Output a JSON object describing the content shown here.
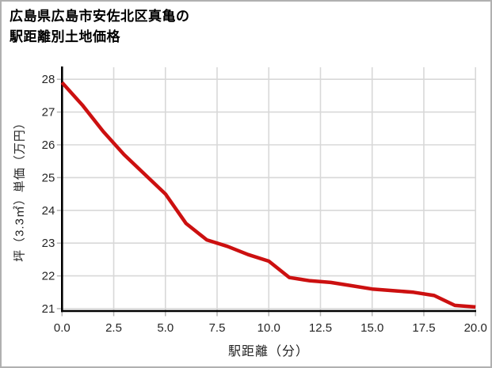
{
  "header": {
    "title_line1": "広島県広島市安佐北区真亀の",
    "title_line2": "駅距離別土地価格"
  },
  "chart_data": {
    "type": "line",
    "title": "広島県広島市安佐北区真亀の駅距離別土地価格",
    "xlabel": "駅距離（分）",
    "ylabel": "坪（3.3㎡）単価（万円）",
    "x": [
      0,
      1,
      2,
      3,
      4,
      5,
      6,
      7,
      8,
      9,
      10,
      11,
      12,
      13,
      14,
      15,
      16,
      17,
      18,
      19,
      20
    ],
    "values": [
      27.9,
      27.2,
      26.4,
      25.7,
      25.1,
      24.5,
      23.6,
      23.1,
      22.9,
      22.65,
      22.45,
      21.95,
      21.85,
      21.8,
      21.7,
      21.6,
      21.55,
      21.5,
      21.4,
      21.1,
      21.05
    ],
    "x_ticks": [
      "0.0",
      "2.5",
      "5.0",
      "7.5",
      "10.0",
      "12.5",
      "15.0",
      "17.5",
      "20.0"
    ],
    "y_ticks": [
      "21",
      "22",
      "23",
      "24",
      "25",
      "26",
      "27",
      "28"
    ],
    "xlim": [
      0,
      20
    ],
    "ylim": [
      20.9,
      28.4
    ],
    "grid": true,
    "legend": "none",
    "colors": {
      "line": "#cc1010",
      "grid": "#d8d8d8",
      "axis": "#000000",
      "tick_mark": "#b5b5b5",
      "tick_text": "#262626"
    }
  }
}
